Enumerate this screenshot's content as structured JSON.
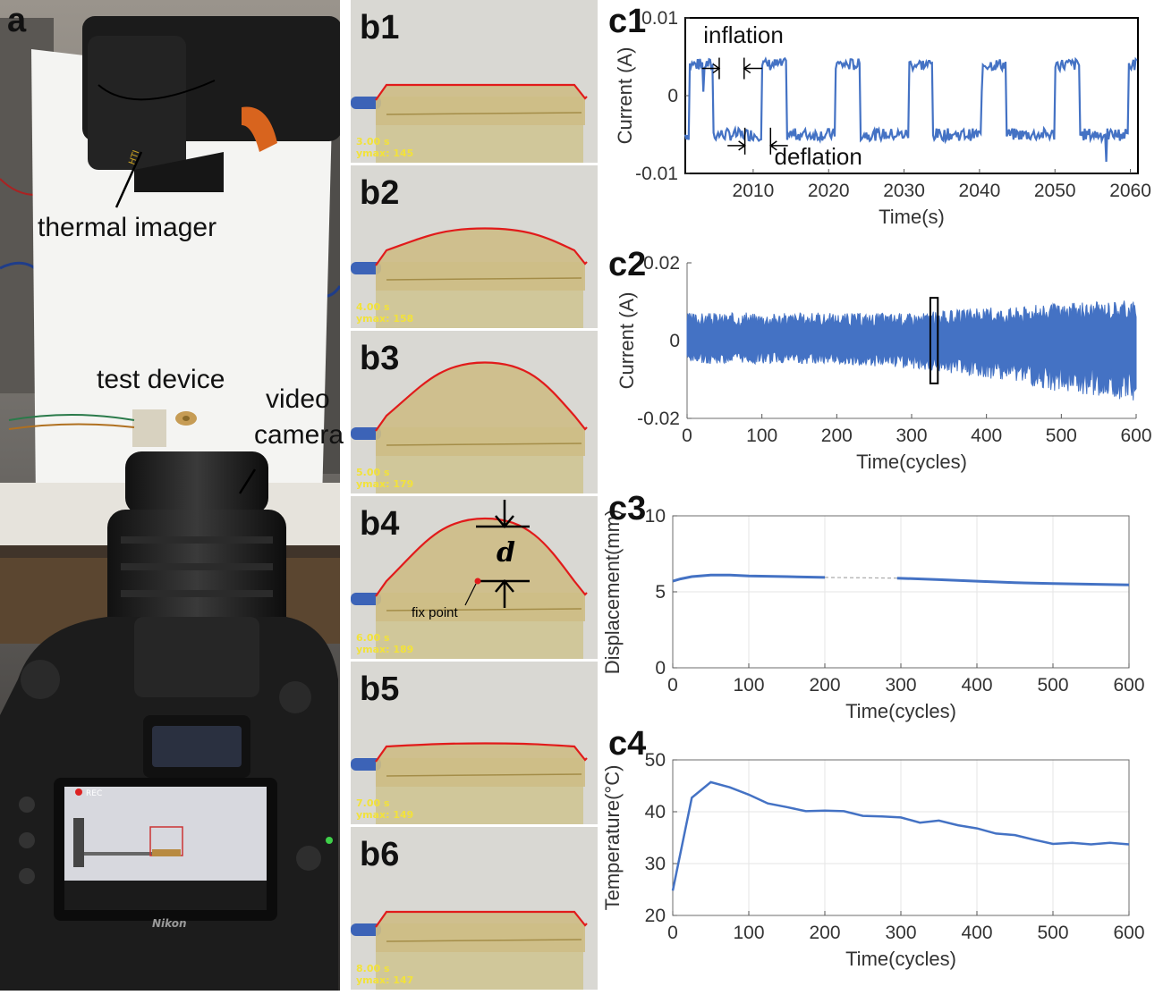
{
  "panel_a": {
    "label": "a",
    "labels": {
      "thermal_imager": "thermal imager",
      "test_device": "test device",
      "video_camera_1": "video",
      "video_camera_2": "camera"
    },
    "brand_text": "Nikon",
    "rec_text": "REC"
  },
  "panel_b": {
    "frames": [
      {
        "label": "b1",
        "time": "3.00 s",
        "ymax": "ymax: 145",
        "dome": 0.0
      },
      {
        "label": "b2",
        "time": "4.00 s",
        "ymax": "ymax: 158",
        "dome": 0.35
      },
      {
        "label": "b3",
        "time": "5.00 s",
        "ymax": "ymax: 179",
        "dome": 0.85
      },
      {
        "label": "b4",
        "time": "6.00 s",
        "ymax": "ymax: 189",
        "dome": 1.0
      },
      {
        "label": "b5",
        "time": "7.00 s",
        "ymax": "ymax: 149",
        "dome": 0.05
      },
      {
        "label": "b6",
        "time": "8.00 s",
        "ymax": "ymax: 147",
        "dome": 0.0
      }
    ],
    "d_label": "d",
    "fix_point_label": "fix point"
  },
  "chart_data": [
    {
      "id": "c1",
      "label": "c1",
      "type": "line",
      "xlabel": "Time(s)",
      "ylabel": "Current (A)",
      "xlim": [
        2001,
        2061
      ],
      "ylim": [
        -0.01,
        0.01
      ],
      "xticks": [
        2010,
        2020,
        2030,
        2040,
        2050,
        2060
      ],
      "yticks": [
        -0.01,
        0,
        0.01
      ],
      "ytick_labels": [
        "-0.01",
        "0",
        "0.01"
      ],
      "annotations": [
        "inflation",
        "deflation"
      ],
      "series": [
        {
          "high": 0.004,
          "low": -0.005,
          "period": 9.7,
          "phase": 2001.5,
          "duty": 0.33
        }
      ],
      "grid": false,
      "box": true,
      "color": "#4472C4"
    },
    {
      "id": "c2",
      "label": "c2",
      "type": "line",
      "xlabel": "Time(cycles)",
      "ylabel": "Current (A)",
      "xlim": [
        0,
        600
      ],
      "ylim": [
        -0.02,
        0.02
      ],
      "xticks": [
        0,
        100,
        200,
        300,
        400,
        500,
        600
      ],
      "yticks": [
        -0.02,
        0,
        0.02
      ],
      "ytick_labels": [
        "-0.02",
        "0",
        "0.02"
      ],
      "envelope": {
        "x": [
          0,
          100,
          200,
          300,
          400,
          500,
          600
        ],
        "upper": [
          0.006,
          0.006,
          0.006,
          0.006,
          0.007,
          0.008,
          0.009
        ],
        "lower": [
          -0.005,
          -0.005,
          -0.005,
          -0.006,
          -0.008,
          -0.011,
          -0.013
        ]
      },
      "highlight_box": [
        325,
        335
      ],
      "grid": false,
      "box": false,
      "color": "#4472C4"
    },
    {
      "id": "c3",
      "label": "c3",
      "type": "line",
      "xlabel": "Time(cycles)",
      "ylabel": "Displacement(mm)",
      "xlim": [
        0,
        600
      ],
      "ylim": [
        0,
        10
      ],
      "xticks": [
        0,
        100,
        200,
        300,
        400,
        500,
        600
      ],
      "yticks": [
        0,
        5,
        10
      ],
      "ytick_labels": [
        "0",
        "5",
        "10"
      ],
      "series": [
        {
          "name": "measured",
          "x": [
            0,
            10,
            25,
            50,
            75,
            100,
            150,
            200
          ],
          "y": [
            5.7,
            5.85,
            6.0,
            6.1,
            6.1,
            6.05,
            6.0,
            5.95
          ],
          "style": "solid"
        },
        {
          "name": "gap",
          "x": [
            200,
            295
          ],
          "y": [
            5.95,
            5.9
          ],
          "style": "dashed"
        },
        {
          "name": "measured2",
          "x": [
            295,
            350,
            400,
            450,
            500,
            550,
            600
          ],
          "y": [
            5.9,
            5.8,
            5.7,
            5.6,
            5.55,
            5.5,
            5.45
          ],
          "style": "solid"
        }
      ],
      "grid": true,
      "box": true,
      "color": "#4472C4"
    },
    {
      "id": "c4",
      "label": "c4",
      "type": "line",
      "xlabel": "Time(cycles)",
      "ylabel": "Temperature(°C)",
      "xlim": [
        0,
        600
      ],
      "ylim": [
        20,
        50
      ],
      "xticks": [
        0,
        100,
        200,
        300,
        400,
        500,
        600
      ],
      "yticks": [
        20,
        30,
        40,
        50
      ],
      "ytick_labels": [
        "20",
        "30",
        "40",
        "50"
      ],
      "series": [
        {
          "x": [
            0,
            25,
            50,
            75,
            100,
            125,
            150,
            175,
            200,
            225,
            250,
            275,
            300,
            325,
            350,
            375,
            400,
            425,
            450,
            475,
            500,
            525,
            550,
            575,
            600
          ],
          "y": [
            24.8,
            42.7,
            45.7,
            44.7,
            43.3,
            41.6,
            40.9,
            40.1,
            40.2,
            40.1,
            39.2,
            39.1,
            38.9,
            37.9,
            38.3,
            37.4,
            36.8,
            35.8,
            35.5,
            34.6,
            33.8,
            34.0,
            33.7,
            34.0,
            33.7
          ]
        }
      ],
      "grid": true,
      "box": true,
      "color": "#4472C4"
    }
  ]
}
